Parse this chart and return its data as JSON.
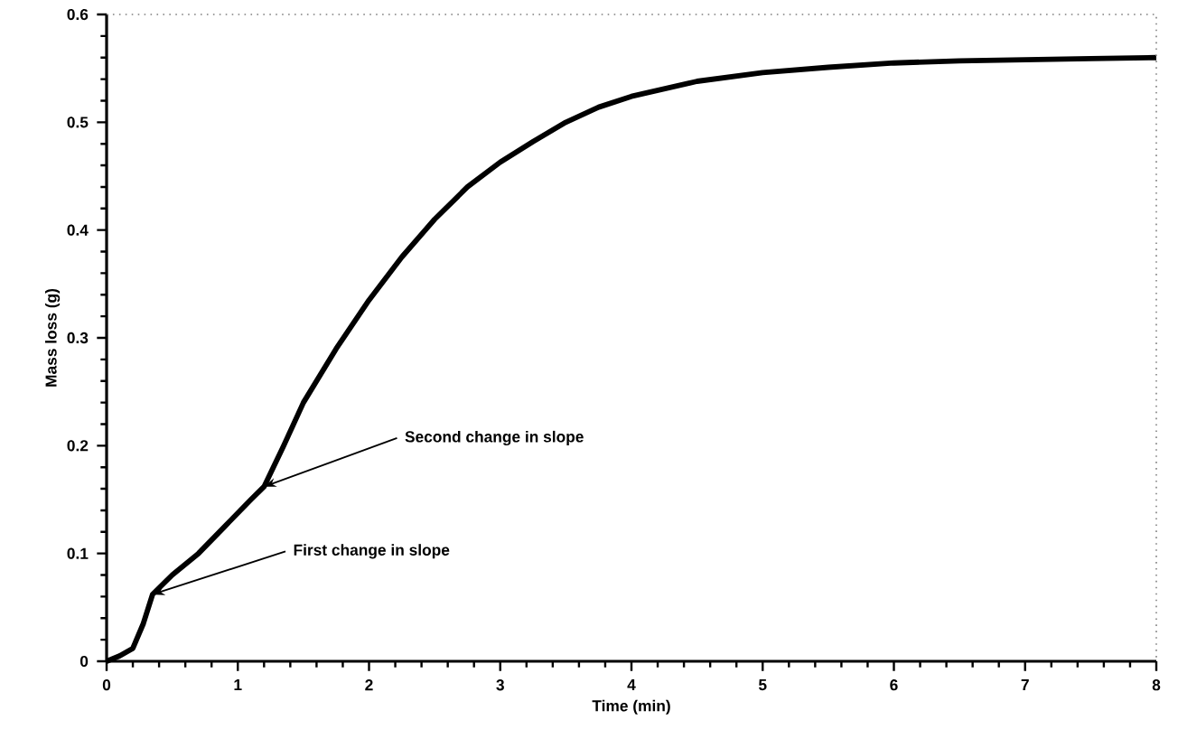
{
  "chart_data": {
    "type": "line",
    "xlabel": "Time (min)",
    "ylabel": "Mass loss (g)",
    "xlim": [
      0,
      8
    ],
    "ylim": [
      0,
      0.6
    ],
    "xticks": [
      0,
      1,
      2,
      3,
      4,
      5,
      6,
      7,
      8
    ],
    "yticks": [
      0,
      0.1,
      0.2,
      0.3,
      0.4,
      0.5,
      0.6
    ],
    "grid": false,
    "marker": "none",
    "line_style": "solid",
    "series": [
      {
        "color": "#000000",
        "x": [
          0,
          0.1,
          0.2,
          0.28,
          0.35,
          0.5,
          0.7,
          0.9,
          1.1,
          1.2,
          1.35,
          1.5,
          1.75,
          2,
          2.25,
          2.5,
          2.75,
          3,
          3.25,
          3.5,
          3.75,
          4,
          4.5,
          5,
          5.5,
          6,
          6.5,
          7,
          7.5,
          8
        ],
        "values": [
          0,
          0.005,
          0.012,
          0.035,
          0.062,
          0.08,
          0.1,
          0.125,
          0.15,
          0.162,
          0.2,
          0.24,
          0.29,
          0.335,
          0.375,
          0.41,
          0.44,
          0.463,
          0.482,
          0.5,
          0.514,
          0.524,
          0.538,
          0.546,
          0.551,
          0.555,
          0.557,
          0.558,
          0.559,
          0.56
        ]
      }
    ],
    "annotations": [
      {
        "text": "Second change in slope",
        "x": 1.2,
        "y": 0.162
      },
      {
        "text": "First change in slope",
        "x": 0.35,
        "y": 0.062
      }
    ]
  }
}
